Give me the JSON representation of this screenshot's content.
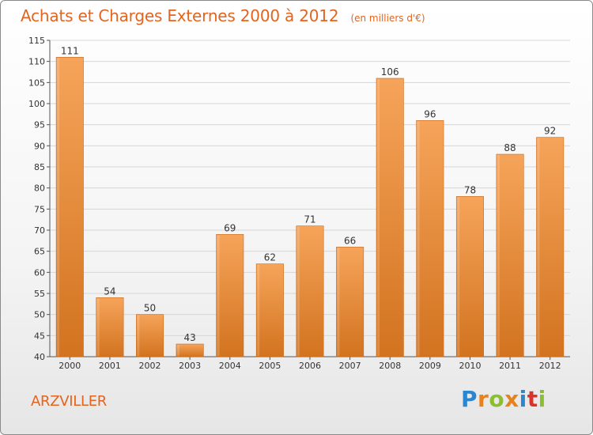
{
  "header": {
    "title": "Achats et Charges Externes 2000 à 2012",
    "subtitle": "(en milliers d'€)"
  },
  "footer": {
    "commune": "ARZVILLER",
    "brand_letters": [
      {
        "ch": "P",
        "color": "#2a86d0"
      },
      {
        "ch": "r",
        "color": "#e8821e"
      },
      {
        "ch": "o",
        "color": "#8bbf2f"
      },
      {
        "ch": "x",
        "color": "#e8821e"
      },
      {
        "ch": "i",
        "color": "#2a86d0"
      },
      {
        "ch": "t",
        "color": "#d9342b"
      },
      {
        "ch": "i",
        "color": "#8bbf2f"
      }
    ]
  },
  "colors": {
    "bar_top": "#f6a45a",
    "bar_bottom": "#d2731f",
    "bar_edge": "#c86a1a",
    "grid": "#d6d6d6",
    "accent": "#e2641e"
  },
  "chart_data": {
    "type": "bar",
    "title": "Achats et Charges Externes 2000 à 2012",
    "subtitle": "(en milliers d'€)",
    "xlabel": "",
    "ylabel": "",
    "ylim": [
      40,
      115
    ],
    "ytick_step": 5,
    "grid": true,
    "categories": [
      "2000",
      "2001",
      "2002",
      "2003",
      "2004",
      "2005",
      "2006",
      "2007",
      "2008",
      "2009",
      "2010",
      "2011",
      "2012"
    ],
    "values": [
      111,
      54,
      50,
      43,
      69,
      62,
      71,
      66,
      106,
      96,
      78,
      88,
      92
    ]
  }
}
